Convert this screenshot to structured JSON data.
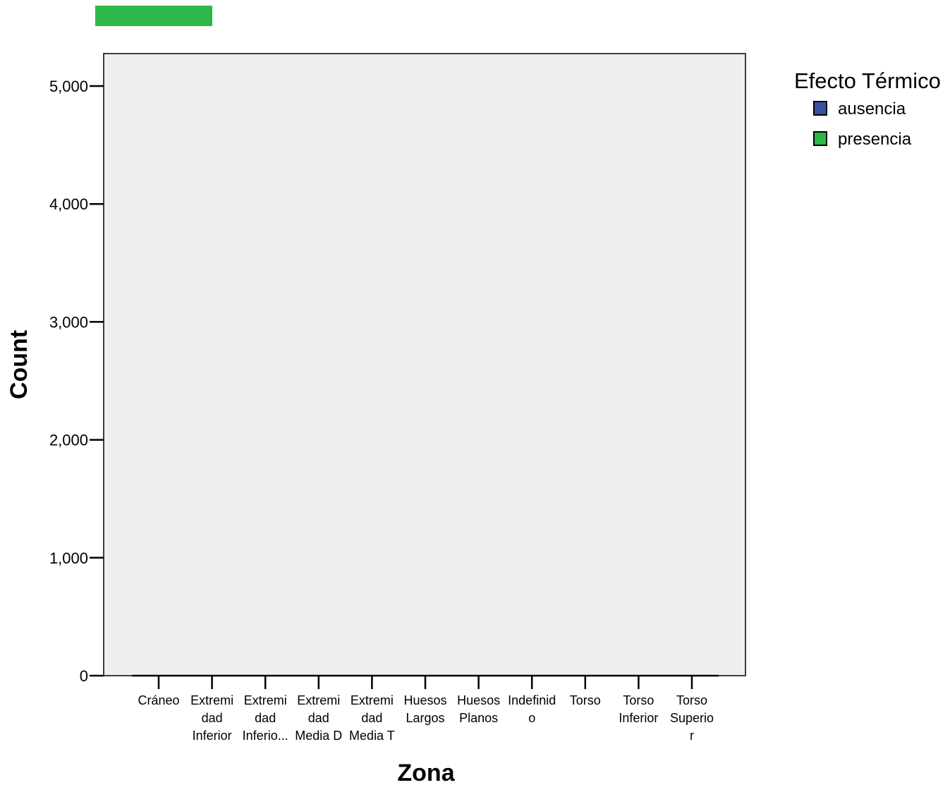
{
  "chart_data": {
    "type": "bar",
    "title": "",
    "xlabel": "Zona",
    "ylabel": "Count",
    "ylim": [
      0,
      5000
    ],
    "yticks": [
      0,
      1000,
      2000,
      3000,
      4000,
      5000
    ],
    "ytick_labels": [
      "0",
      "1,000",
      "2,000",
      "3,000",
      "4,000",
      "5,000"
    ],
    "categories": [
      [
        "Cráneo"
      ],
      [
        "Extremi",
        "dad",
        "Inferior"
      ],
      [
        "Extremi",
        "dad",
        "Inferio..."
      ],
      [
        "Extremi",
        "dad",
        "Media D"
      ],
      [
        "Extremi",
        "dad",
        "Media T"
      ],
      [
        "Huesos",
        "Largos"
      ],
      [
        "Huesos",
        "Planos"
      ],
      [
        "Indefinid",
        "o"
      ],
      [
        "Torso"
      ],
      [
        "Torso",
        "Inferior"
      ],
      [
        "Torso",
        "Superio",
        "r"
      ]
    ],
    "legend": {
      "title": "Efecto Térmico",
      "placement": "right",
      "entries": [
        {
          "name": "ausencia",
          "color": "#3a4fa0"
        },
        {
          "name": "presencia",
          "color": "#2db84a"
        }
      ]
    },
    "series": [
      {
        "name": "ausencia",
        "color": "#3a4fa0",
        "values": [
          0,
          0,
          0,
          0,
          0,
          0,
          0,
          0,
          0,
          0,
          0
        ]
      },
      {
        "name": "presencia",
        "color": "#2db84a",
        "values": [
          0,
          0,
          0,
          0,
          0,
          0,
          0,
          0,
          0,
          0,
          0
        ]
      }
    ],
    "grid": false,
    "plot_background": "#efefef",
    "top_swatch_color": "#2db84a"
  }
}
